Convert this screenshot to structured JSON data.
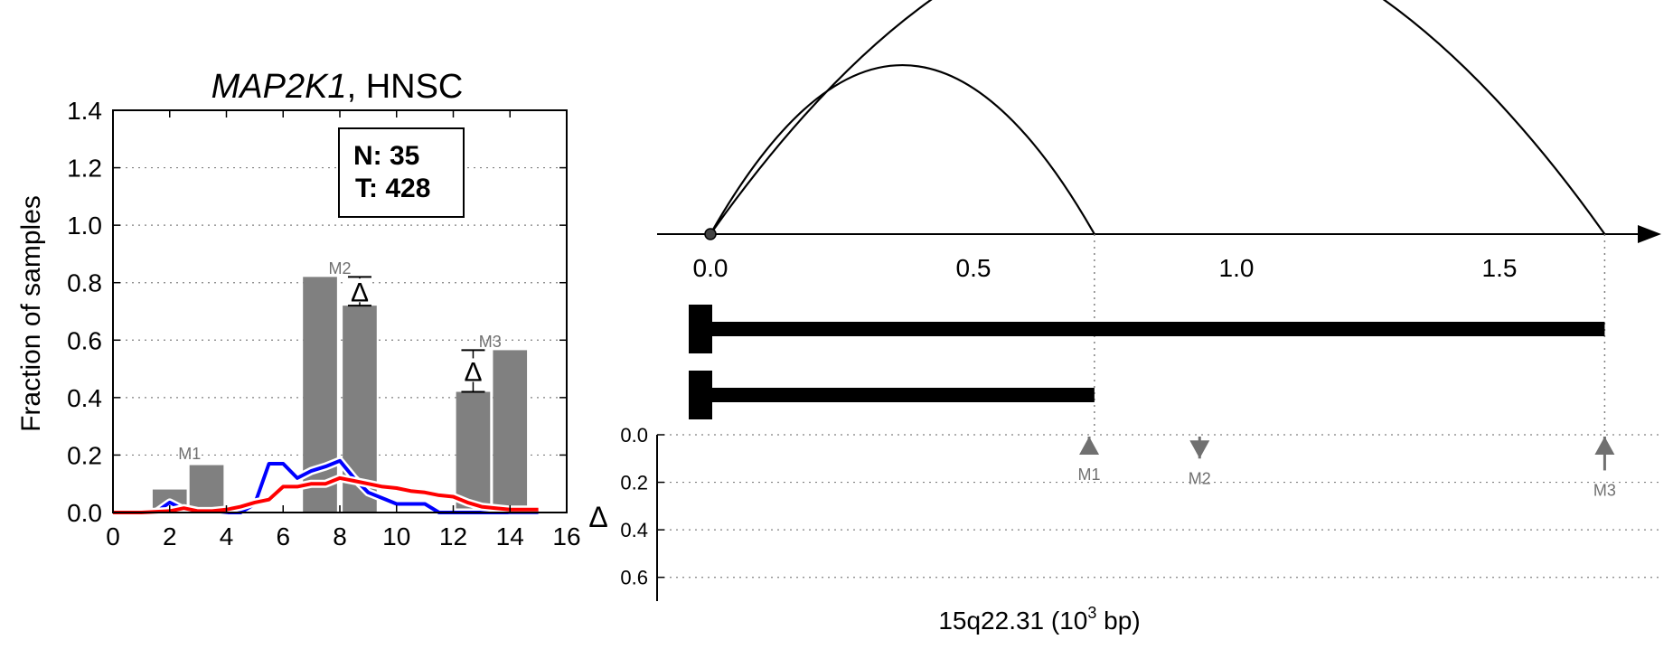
{
  "colors": {
    "bar": "#808080",
    "normal_line": "#0000ff",
    "tumor_line": "#ff0000",
    "axis": "#000000",
    "grid": "#808080",
    "marker": "#707070"
  },
  "chart_data": [
    {
      "type": "bar",
      "title": {
        "gene": "MAP2K1",
        "rest": ", HNSC"
      },
      "xlabel": "",
      "ylabel": "Fraction of samples",
      "xlim": [
        0,
        16
      ],
      "ylim": [
        0,
        1.4
      ],
      "xticks": [
        "0",
        "2",
        "4",
        "6",
        "8",
        "10",
        "12",
        "14",
        "16"
      ],
      "yticks": [
        "0.0",
        "0.2",
        "0.4",
        "0.6",
        "0.8",
        "1.0",
        "1.2",
        "1.4"
      ],
      "grid": "horizontal dotted",
      "legend_box": {
        "line1": "N: 35",
        "line2": "T: 428",
        "placement": "top-right"
      },
      "bars": [
        {
          "x": 2,
          "value": 0.08
        },
        {
          "x": 3.3,
          "value": 0.165
        },
        {
          "x": 7.3,
          "value": 0.82
        },
        {
          "x": 8.7,
          "value": 0.72
        },
        {
          "x": 12.7,
          "value": 0.42
        },
        {
          "x": 14,
          "value": 0.565
        }
      ],
      "bar_width": 1.2,
      "series": [
        {
          "color_key": "normal_line",
          "x": [
            0,
            1,
            1.5,
            2,
            2.5,
            3,
            4,
            4.5,
            5,
            5.5,
            6,
            6.5,
            7,
            7.5,
            8,
            8.5,
            9,
            9.5,
            10,
            10.5,
            11,
            11.5,
            12,
            13,
            14,
            15
          ],
          "y": [
            0,
            0,
            0,
            0.035,
            0.01,
            0,
            0,
            0,
            0.03,
            0.17,
            0.17,
            0.12,
            0.145,
            0.16,
            0.18,
            0.12,
            0.07,
            0.05,
            0.03,
            0.03,
            0.03,
            0,
            0,
            0,
            0,
            0
          ]
        },
        {
          "color_key": "tumor_line",
          "x": [
            0,
            1,
            2,
            2.5,
            3,
            3.5,
            4,
            4.5,
            5,
            5.5,
            6,
            6.5,
            7,
            7.5,
            8,
            8.5,
            9,
            9.5,
            10,
            10.5,
            11,
            11.5,
            12,
            12.5,
            13,
            13.5,
            14,
            15
          ],
          "y": [
            0,
            0,
            0.005,
            0.015,
            0.005,
            0.005,
            0.01,
            0.02,
            0.035,
            0.045,
            0.09,
            0.09,
            0.1,
            0.1,
            0.12,
            0.11,
            0.1,
            0.09,
            0.085,
            0.075,
            0.07,
            0.06,
            0.055,
            0.035,
            0.02,
            0.015,
            0.01,
            0.01
          ]
        }
      ],
      "annotations": [
        {
          "label": "M1",
          "x": 2.7,
          "y": 0.185
        },
        {
          "label": "M2",
          "x": 8,
          "y": 0.83
        },
        {
          "label": "M3",
          "x": 13.3,
          "y": 0.575
        }
      ],
      "deltas": [
        {
          "label": "Δ",
          "x": 8.7,
          "y_low": 0.72,
          "y_high": 0.82
        },
        {
          "label": "Δ",
          "x": 12.7,
          "y_low": 0.42,
          "y_high": 0.565
        }
      ]
    },
    {
      "type": "line",
      "xlabel": {
        "base": "15q22.31 (10",
        "sup": "3",
        "tail": " bp)"
      },
      "xticks": [
        "0.0",
        "0.5",
        "1.0",
        "1.5"
      ],
      "xlim": [
        -0.1,
        1.8
      ],
      "arcs": [
        {
          "from": 0,
          "to": 0.73
        },
        {
          "from": 0,
          "to": 1.7
        }
      ],
      "segments": [
        {
          "from": 0,
          "to": 1.7
        },
        {
          "from": 0,
          "to": 0.73
        }
      ],
      "delta_axis": {
        "label": "Δ",
        "yticks": [
          "0.0",
          "0.2",
          "0.4",
          "0.6"
        ],
        "ylim": [
          0,
          0.7
        ]
      },
      "markers": [
        {
          "label": "M1",
          "x": 0.72,
          "direction": "up",
          "value": 0.05
        },
        {
          "label": "M2",
          "x": 0.93,
          "direction": "down",
          "value": 0.1
        },
        {
          "label": "M3",
          "x": 1.7,
          "direction": "up",
          "value": 0.15
        }
      ]
    }
  ]
}
